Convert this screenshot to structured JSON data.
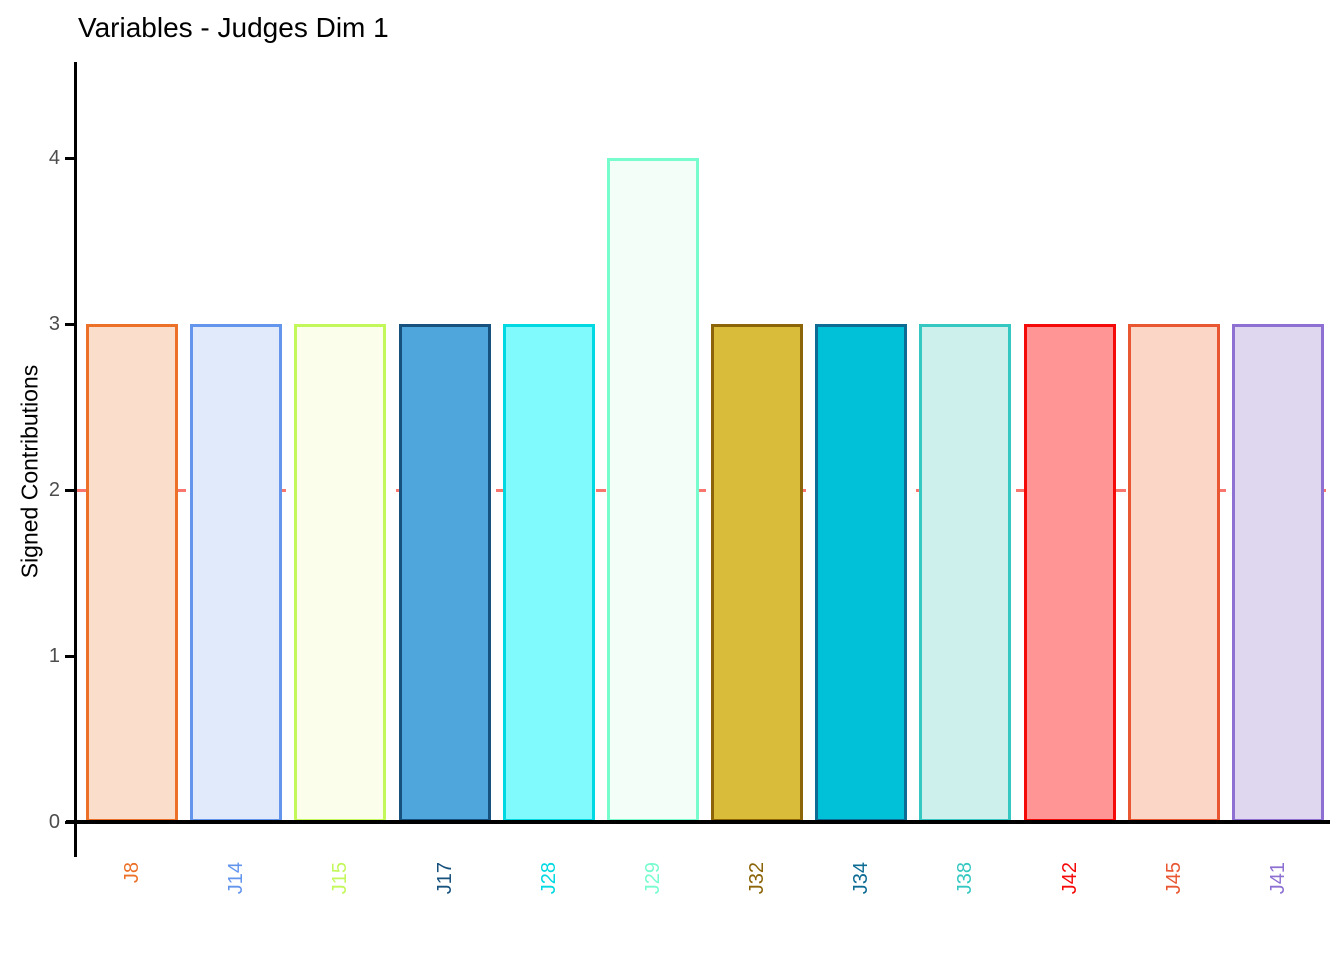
{
  "title": "Variables - Judges Dim 1",
  "y_axis": {
    "label": "Signed Contributions",
    "tick_color": "#4D4D4D",
    "axis_color": "#000000"
  },
  "reference_line": {
    "y": 2,
    "color": "#F8766D",
    "style": "dashed"
  },
  "chart_data": {
    "type": "bar",
    "title": "Variables - Judges Dim 1",
    "xlabel": "",
    "ylabel": "Signed Contributions",
    "ylim": [
      0,
      4.6
    ],
    "yticks": [
      0,
      1,
      2,
      3,
      4
    ],
    "grid": "off",
    "legend": "none",
    "reference_line_y": 2,
    "categories": [
      "J8",
      "J14",
      "J15",
      "J17",
      "J28",
      "J29",
      "J32",
      "J34",
      "J38",
      "J42",
      "J45",
      "J41"
    ],
    "values": [
      3,
      3,
      3,
      3,
      3,
      4,
      3,
      3,
      3,
      3,
      3,
      3
    ],
    "bars": [
      {
        "label": "J8",
        "value": 3,
        "fill": "#FBDDCB",
        "border": "#EC7027"
      },
      {
        "label": "J14",
        "value": 3,
        "fill": "#E1EAFB",
        "border": "#6495ED"
      },
      {
        "label": "J15",
        "value": 3,
        "fill": "#FAFEEB",
        "border": "#C2F85A"
      },
      {
        "label": "J17",
        "value": 3,
        "fill": "#4FA6DC",
        "border": "#17517E"
      },
      {
        "label": "J28",
        "value": 3,
        "fill": "#80FAFC",
        "border": "#00D9E1"
      },
      {
        "label": "J29",
        "value": 4,
        "fill": "#F3FEF9",
        "border": "#77FCCE"
      },
      {
        "label": "J32",
        "value": 3,
        "fill": "#D9BC3A",
        "border": "#8B6508"
      },
      {
        "label": "J34",
        "value": 3,
        "fill": "#00C1D8",
        "border": "#0E6C94"
      },
      {
        "label": "J38",
        "value": 3,
        "fill": "#CDF0EC",
        "border": "#35C8C2"
      },
      {
        "label": "J42",
        "value": 3,
        "fill": "#FF9595",
        "border": "#F50A0A"
      },
      {
        "label": "J45",
        "value": 3,
        "fill": "#FBD6C6",
        "border": "#E85732"
      },
      {
        "label": "J41",
        "value": 3,
        "fill": "#DFD6F0",
        "border": "#8D70D2"
      }
    ]
  }
}
